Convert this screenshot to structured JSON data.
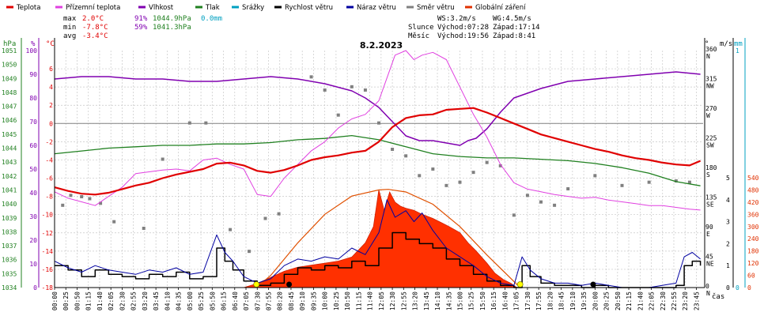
{
  "legend": [
    {
      "label": "Teplota",
      "color": "#e00000"
    },
    {
      "label": "Přízemní teplota",
      "color": "#e040e0"
    },
    {
      "label": "Vlhkost",
      "color": "#8000b0"
    },
    {
      "label": "Tlak",
      "color": "#208020"
    },
    {
      "label": "Srážky",
      "color": "#00a0c0"
    },
    {
      "label": "Rychlost větru",
      "color": "#000000"
    },
    {
      "label": "Náraz větru",
      "color": "#0000a0"
    },
    {
      "label": "Směr větru",
      "color": "#808080"
    },
    {
      "label": "Globální záření",
      "color": "#e03000"
    }
  ],
  "stats": {
    "max_label": "max",
    "max_temp": "2.0°C",
    "max_hum": "91%",
    "max_press": "1044.9hPa",
    "max_rain": "0.0mm",
    "min_label": "min",
    "min_temp": "-7.8°C",
    "min_hum": "59%",
    "min_press": "1041.3hPa",
    "avg_label": "avg",
    "avg_temp": "-3.4°C"
  },
  "info": {
    "ws": "WS:3.2m/s",
    "wg": "WG:4.5m/s",
    "sun_label": "Slunce",
    "sunrise": "Východ:07:28",
    "sunset": "Západ:17:14",
    "moon_label": "Měsíc",
    "moonrise": "Východ:19:56",
    "moonset": "Západ:8:41"
  },
  "date": "8.2.2023",
  "axis_units": {
    "hpa": "hPa",
    "pct": "%",
    "degc": "°C",
    "deg": "°",
    "ms": "m/s",
    "mm": "mm",
    "wm2": "W/m2",
    "time": "čas"
  },
  "colors": {
    "temp": "#e00000",
    "ground": "#e040e0",
    "hum": "#8000b0",
    "press": "#208020",
    "rain": "#00a0c0",
    "wind": "#000000",
    "gust": "#0000a0",
    "dir": "#808080",
    "rad": "#e03000",
    "grid": "#c8c8c8",
    "zero": "#808080"
  },
  "chart_data": {
    "type": "line",
    "title": "8.2.2023",
    "x_ticks": [
      "00:00",
      "00:25",
      "00:50",
      "01:15",
      "01:40",
      "02:05",
      "02:30",
      "02:55",
      "03:20",
      "03:45",
      "04:10",
      "04:35",
      "05:00",
      "05:25",
      "05:50",
      "06:15",
      "06:40",
      "07:05",
      "07:30",
      "07:55",
      "08:20",
      "08:45",
      "09:10",
      "09:35",
      "10:00",
      "10:25",
      "10:50",
      "11:15",
      "11:40",
      "12:05",
      "12:30",
      "12:55",
      "13:20",
      "13:45",
      "14:10",
      "14:35",
      "15:00",
      "15:25",
      "15:50",
      "16:15",
      "16:40",
      "17:05",
      "17:30",
      "17:55",
      "18:20",
      "18:45",
      "19:10",
      "19:35",
      "20:00",
      "20:25",
      "20:50",
      "21:15",
      "21:40",
      "22:05",
      "22:30",
      "22:55",
      "23:20",
      "23:45"
    ],
    "axes": {
      "pressure_hpa": {
        "min": 1034,
        "max": 1051,
        "ticks": [
          1034,
          1035,
          1036,
          1037,
          1038,
          1039,
          1040,
          1041,
          1042,
          1043,
          1044,
          1045,
          1046,
          1047,
          1048,
          1049,
          1050,
          1051
        ]
      },
      "humidity_pct": {
        "min": 0,
        "max": 100,
        "ticks": [
          0,
          10,
          20,
          30,
          40,
          50,
          60,
          70,
          80,
          90,
          100
        ]
      },
      "temperature_c": {
        "min": -18,
        "max": 8,
        "ticks": [
          -18,
          -16,
          -14,
          -12,
          -10,
          -8,
          -6,
          -4,
          -2,
          0,
          2,
          4,
          6
        ]
      },
      "direction_deg": {
        "min": 0,
        "max": 360,
        "ticks": [
          {
            "v": 0,
            "l": "0",
            "c": "N"
          },
          {
            "v": 45,
            "l": "45",
            "c": "NE"
          },
          {
            "v": 90,
            "l": "90",
            "c": "E"
          },
          {
            "v": 135,
            "l": "135",
            "c": "SE"
          },
          {
            "v": 180,
            "l": "180",
            "c": "S"
          },
          {
            "v": 225,
            "l": "225",
            "c": "SW"
          },
          {
            "v": 270,
            "l": "270",
            "c": "W"
          },
          {
            "v": 315,
            "l": "315",
            "c": "NW"
          },
          {
            "v": 360,
            "l": "360",
            "c": "N"
          }
        ]
      },
      "wind_ms": {
        "min": 0,
        "max": 5,
        "ticks": [
          0,
          1,
          2,
          3,
          4,
          5
        ]
      },
      "rain_mm": {
        "min": 0,
        "max": 1,
        "ticks": [
          0,
          1
        ]
      },
      "radiation_wm2": {
        "min": 0,
        "max": 540,
        "ticks": [
          0,
          60,
          120,
          180,
          240,
          300,
          360,
          420,
          480,
          540
        ]
      }
    },
    "series": {
      "teplota": {
        "t": [
          0,
          0.5,
          1.0,
          1.5,
          2.0,
          2.5,
          3.0,
          3.5,
          4.0,
          4.5,
          5.0,
          5.5,
          6.0,
          6.5,
          7.0,
          7.5,
          8.0,
          8.5,
          9.0,
          9.5,
          10.0,
          10.5,
          11.0,
          11.5,
          12.0,
          12.5,
          13.0,
          13.5,
          14.0,
          14.5,
          15.0,
          15.5,
          16.0,
          16.5,
          17.0,
          17.5,
          18.0,
          18.5,
          19.0,
          19.5,
          20.0,
          20.5,
          21.0,
          21.5,
          22.0,
          22.5,
          23.0,
          23.5,
          23.9
        ],
        "v": [
          -7.0,
          -7.4,
          -7.7,
          -7.8,
          -7.6,
          -7.2,
          -6.8,
          -6.5,
          -6.0,
          -5.6,
          -5.3,
          -5.0,
          -4.4,
          -4.3,
          -4.6,
          -5.2,
          -5.4,
          -5.1,
          -4.6,
          -4.0,
          -3.7,
          -3.5,
          -3.2,
          -3.0,
          -2.0,
          -0.4,
          0.6,
          0.9,
          1.0,
          1.5,
          1.6,
          1.7,
          1.2,
          0.6,
          0.0,
          -0.6,
          -1.2,
          -1.6,
          -2.0,
          -2.4,
          -2.8,
          -3.1,
          -3.5,
          -3.8,
          -4.0,
          -4.3,
          -4.5,
          -4.6,
          -4.1
        ]
      },
      "prizemni_teplota": {
        "t": [
          0,
          0.5,
          1.0,
          1.5,
          2.0,
          2.5,
          3.0,
          3.5,
          4.0,
          4.5,
          5.0,
          5.5,
          6.0,
          6.5,
          7.0,
          7.5,
          8.0,
          8.5,
          9.0,
          9.5,
          10.0,
          10.5,
          11.0,
          11.5,
          12.0,
          12.3,
          12.6,
          13.0,
          13.3,
          13.6,
          14.0,
          14.5,
          15.0,
          15.5,
          16.0,
          16.5,
          17.0,
          17.5,
          18.0,
          18.5,
          19.0,
          19.5,
          20.0,
          20.5,
          21.0,
          21.5,
          22.0,
          22.5,
          23.0,
          23.5,
          23.9
        ],
        "v": [
          -7.5,
          -8.2,
          -8.6,
          -9.0,
          -8.0,
          -7.0,
          -5.5,
          -5.3,
          -5.1,
          -5.0,
          -5.2,
          -4.0,
          -3.8,
          -4.5,
          -5.0,
          -7.8,
          -8.0,
          -6.0,
          -4.5,
          -3.0,
          -2.0,
          -0.5,
          0.5,
          1.0,
          2.5,
          5.0,
          7.5,
          8.0,
          7.0,
          7.5,
          7.8,
          7.0,
          4.0,
          1.0,
          -1.5,
          -4.5,
          -6.5,
          -7.2,
          -7.5,
          -7.8,
          -8.0,
          -8.2,
          -8.1,
          -8.4,
          -8.6,
          -8.8,
          -9.0,
          -9.0,
          -9.2,
          -9.4,
          -9.5
        ]
      },
      "vlhkost": {
        "t": [
          0,
          1,
          2,
          3,
          4,
          5,
          6,
          7,
          8,
          9,
          10,
          11,
          11.5,
          12.0,
          12.5,
          13.0,
          13.5,
          14.0,
          14.5,
          15.0,
          15.3,
          15.6,
          16.0,
          16.5,
          17.0,
          18,
          19,
          20,
          21,
          22,
          23,
          23.9
        ],
        "v": [
          88,
          89,
          89,
          88,
          88,
          87,
          87,
          88,
          89,
          88,
          86,
          83,
          80,
          76,
          70,
          64,
          62,
          62,
          61,
          60,
          62,
          63,
          67,
          74,
          80,
          84,
          87,
          88,
          89,
          90,
          91,
          90
        ]
      },
      "tlak": {
        "t": [
          0,
          1,
          2,
          3,
          4,
          5,
          6,
          7,
          8,
          9,
          10,
          11,
          12,
          13,
          14,
          15,
          16,
          17,
          18,
          19,
          20,
          21,
          22,
          23,
          23.9
        ],
        "v": [
          1043.6,
          1043.8,
          1044.0,
          1044.1,
          1044.2,
          1044.2,
          1044.3,
          1044.3,
          1044.4,
          1044.6,
          1044.7,
          1044.9,
          1044.6,
          1044.1,
          1043.6,
          1043.4,
          1043.3,
          1043.3,
          1043.2,
          1043.1,
          1042.9,
          1042.6,
          1042.2,
          1041.6,
          1041.3
        ]
      },
      "rychlost_vetru": {
        "t": [
          0,
          0.5,
          1.0,
          1.5,
          2.0,
          2.5,
          3.0,
          3.5,
          4.0,
          4.5,
          5.0,
          5.5,
          6.0,
          6.3,
          6.6,
          7.0,
          7.5,
          8.0,
          8.5,
          9.0,
          9.5,
          10.0,
          10.5,
          11.0,
          11.5,
          12.0,
          12.5,
          13.0,
          13.5,
          14.0,
          14.5,
          15.0,
          15.5,
          16.0,
          16.5,
          17.0,
          17.3,
          17.6,
          18.0,
          18.5,
          19.0,
          19.5,
          20.0,
          20.5,
          21.0,
          21.5,
          22.0,
          22.5,
          23.0,
          23.3,
          23.6,
          23.9
        ],
        "v": [
          1.0,
          0.8,
          0.5,
          0.8,
          0.6,
          0.5,
          0.4,
          0.6,
          0.5,
          0.7,
          0.4,
          0.5,
          1.8,
          1.2,
          0.8,
          0.3,
          0.1,
          0.2,
          0.6,
          0.9,
          0.8,
          1.0,
          0.9,
          1.2,
          1.0,
          1.8,
          2.5,
          2.2,
          2.0,
          1.8,
          1.3,
          1.0,
          0.6,
          0.3,
          0.1,
          0.0,
          1.0,
          0.5,
          0.2,
          0.1,
          0.1,
          0.0,
          0.1,
          0.0,
          0.0,
          0.0,
          0.0,
          0.0,
          0.1,
          1.0,
          1.2,
          1.0
        ]
      },
      "naraz_vetru": {
        "t": [
          0,
          0.5,
          1.0,
          1.5,
          2.0,
          2.5,
          3.0,
          3.5,
          4.0,
          4.5,
          5.0,
          5.5,
          6.0,
          6.3,
          6.6,
          7.0,
          7.5,
          8.0,
          8.5,
          9.0,
          9.5,
          10.0,
          10.5,
          11.0,
          11.5,
          12.0,
          12.3,
          12.6,
          13.0,
          13.3,
          13.6,
          14.0,
          14.5,
          15.0,
          15.5,
          16.0,
          16.5,
          17.0,
          17.3,
          17.6,
          18.0,
          18.5,
          19.0,
          19.5,
          20.0,
          21,
          22,
          23.0,
          23.3,
          23.6,
          23.9
        ],
        "v": [
          1.2,
          0.9,
          0.7,
          1.0,
          0.8,
          0.7,
          0.6,
          0.8,
          0.7,
          0.9,
          0.6,
          0.7,
          2.4,
          1.6,
          1.2,
          0.5,
          0.2,
          0.4,
          1.0,
          1.3,
          1.2,
          1.4,
          1.3,
          1.8,
          1.5,
          2.5,
          4.0,
          3.2,
          3.5,
          3.0,
          3.4,
          2.6,
          1.8,
          1.4,
          1.0,
          0.5,
          0.2,
          0.1,
          1.4,
          0.8,
          0.4,
          0.2,
          0.2,
          0.1,
          0.2,
          0.0,
          0.0,
          0.2,
          1.4,
          1.6,
          1.3
        ]
      },
      "globalni_zareni": {
        "t": [
          7.0,
          7.5,
          8.0,
          8.5,
          9.0,
          9.5,
          10.0,
          10.5,
          11.0,
          11.5,
          11.8,
          12.0,
          12.2,
          12.4,
          12.6,
          12.8,
          13.0,
          13.3,
          13.6,
          14.0,
          14.3,
          14.6,
          15.0,
          15.3,
          15.6,
          16.0,
          16.3,
          16.6,
          16.9,
          17.1
        ],
        "v": [
          0,
          20,
          50,
          80,
          100,
          110,
          120,
          130,
          150,
          220,
          300,
          480,
          380,
          470,
          420,
          400,
          390,
          380,
          360,
          340,
          320,
          300,
          270,
          220,
          180,
          120,
          70,
          40,
          20,
          0
        ]
      },
      "teoreticke_zareni": {
        "t": [
          7.47,
          8.0,
          9.0,
          10.0,
          11.0,
          12.0,
          12.35,
          13.0,
          14.0,
          15.0,
          16.0,
          17.0,
          17.23
        ],
        "v": [
          0,
          60,
          220,
          360,
          450,
          480,
          483,
          470,
          410,
          300,
          160,
          30,
          0
        ]
      },
      "smer_vetru": {
        "points": [
          [
            0.3,
            125
          ],
          [
            0.6,
            140
          ],
          [
            1.0,
            138
          ],
          [
            1.3,
            135
          ],
          [
            1.7,
            128
          ],
          [
            2.2,
            100
          ],
          [
            3.3,
            90
          ],
          [
            4.0,
            195
          ],
          [
            5.0,
            250
          ],
          [
            5.6,
            250
          ],
          [
            6.5,
            88
          ],
          [
            7.2,
            55
          ],
          [
            7.8,
            105
          ],
          [
            8.3,
            112
          ],
          [
            9.5,
            320
          ],
          [
            10.0,
            300
          ],
          [
            10.5,
            262
          ],
          [
            11.0,
            305
          ],
          [
            11.5,
            300
          ],
          [
            12.0,
            250
          ],
          [
            12.5,
            210
          ],
          [
            13.0,
            200
          ],
          [
            13.5,
            170
          ],
          [
            14.0,
            180
          ],
          [
            14.5,
            155
          ],
          [
            15.0,
            160
          ],
          [
            15.5,
            175
          ],
          [
            16.0,
            190
          ],
          [
            16.5,
            185
          ],
          [
            17.0,
            110
          ],
          [
            17.5,
            140
          ],
          [
            18.0,
            130
          ],
          [
            18.5,
            125
          ],
          [
            19.0,
            150
          ],
          [
            20.0,
            170
          ],
          [
            21.0,
            155
          ],
          [
            22.0,
            160
          ],
          [
            23.0,
            162
          ],
          [
            23.5,
            160
          ]
        ]
      },
      "sunrise_marker": {
        "t": 7.47
      },
      "sunset_marker": {
        "t": 17.23
      },
      "moon_marker": {
        "t": 8.68
      },
      "moonrise_marker": {
        "t": 19.93
      }
    }
  }
}
